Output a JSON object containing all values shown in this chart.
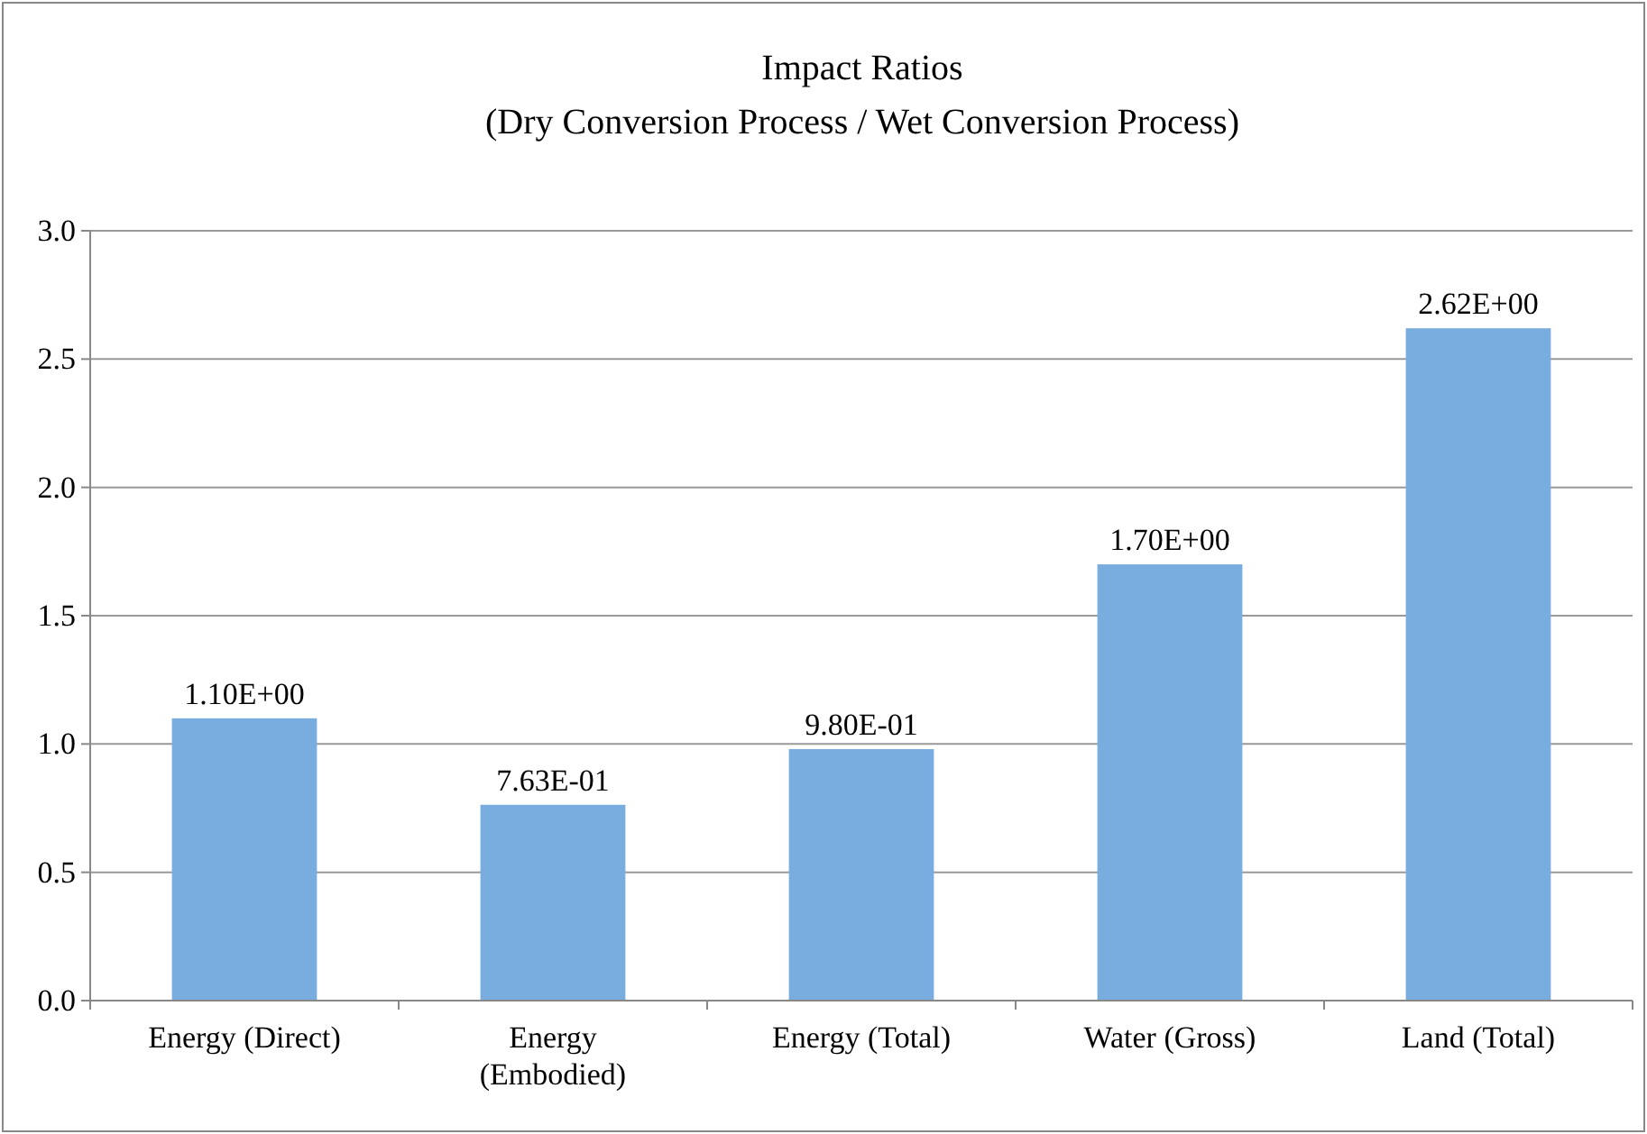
{
  "chart_data": {
    "type": "bar",
    "title": "Impact Ratios",
    "subtitle": "(Dry Conversion Process / Wet Conversion Process)",
    "categories": [
      "Energy (Direct)",
      "Energy (Embodied)",
      "Energy (Total)",
      "Water (Gross)",
      "Land (Total)"
    ],
    "values": [
      1.1,
      0.763,
      0.98,
      1.7,
      2.62
    ],
    "value_labels": [
      "1.10E+00",
      "7.63E-01",
      "9.80E-01",
      "1.70E+00",
      "2.62E+00"
    ],
    "color": "#79acdf",
    "ylim": [
      0,
      3
    ],
    "yticks": [
      {
        "value": 0,
        "label": "0.0"
      },
      {
        "value": 0.5,
        "label": "0.5"
      },
      {
        "value": 1,
        "label": "1.0"
      },
      {
        "value": 1.5,
        "label": "1.5"
      },
      {
        "value": 2,
        "label": "2.0"
      },
      {
        "value": 2.5,
        "label": "2.5"
      },
      {
        "value": 3,
        "label": "3.0"
      }
    ],
    "grid": "y"
  }
}
